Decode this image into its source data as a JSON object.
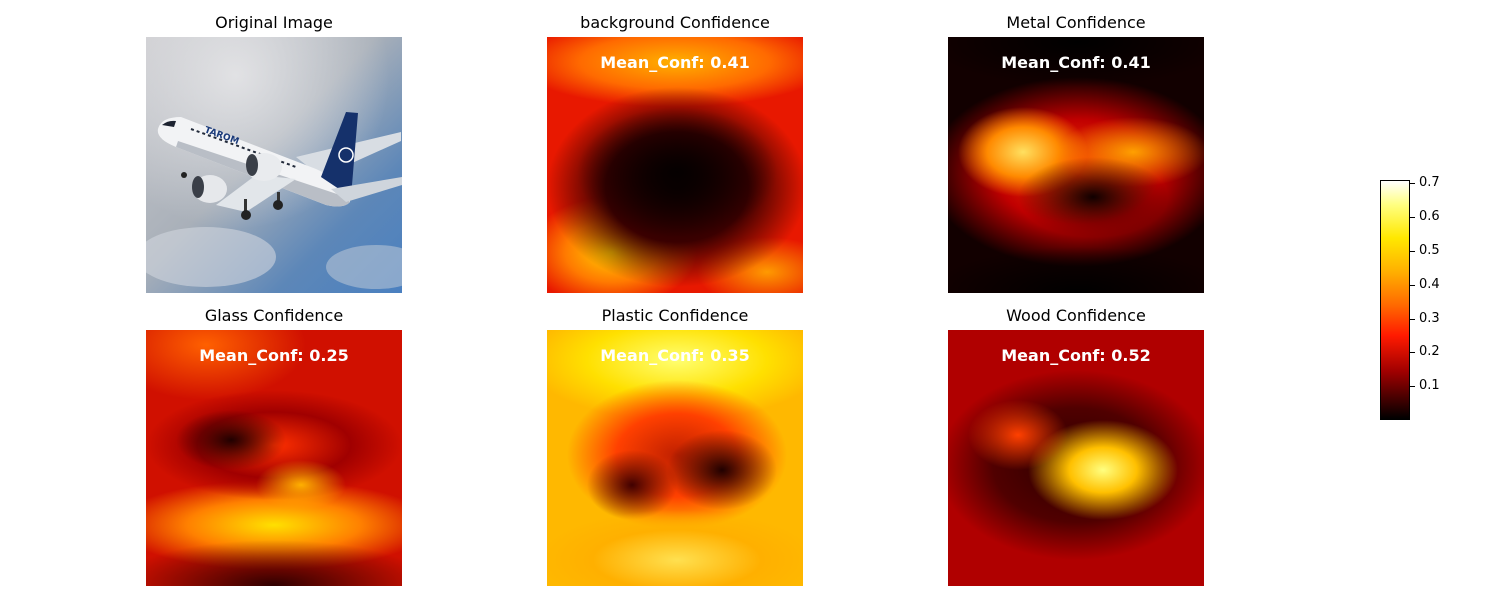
{
  "chart_data": {
    "type": "heatmap",
    "panels": [
      {
        "title": "Original Image",
        "kind": "image",
        "mean_label": ""
      },
      {
        "title": "background Confidence",
        "kind": "heatmap",
        "mean_label": "Mean_Conf: 0.41",
        "mean_conf": 0.41
      },
      {
        "title": "Metal Confidence",
        "kind": "heatmap",
        "mean_label": "Mean_Conf: 0.41",
        "mean_conf": 0.41
      },
      {
        "title": "Glass Confidence",
        "kind": "heatmap",
        "mean_label": "Mean_Conf: 0.25",
        "mean_conf": 0.25
      },
      {
        "title": "Plastic Confidence",
        "kind": "heatmap",
        "mean_label": "Mean_Conf: 0.35",
        "mean_conf": 0.35
      },
      {
        "title": "Wood Confidence",
        "kind": "heatmap",
        "mean_label": "Mean_Conf: 0.52",
        "mean_conf": 0.52
      }
    ],
    "colorbar": {
      "colormap": "hot",
      "range": [
        0.0,
        0.71
      ],
      "ticks": [
        "0.1",
        "0.2",
        "0.3",
        "0.4",
        "0.5",
        "0.6",
        "0.7"
      ]
    },
    "image_text": "TAROM"
  }
}
